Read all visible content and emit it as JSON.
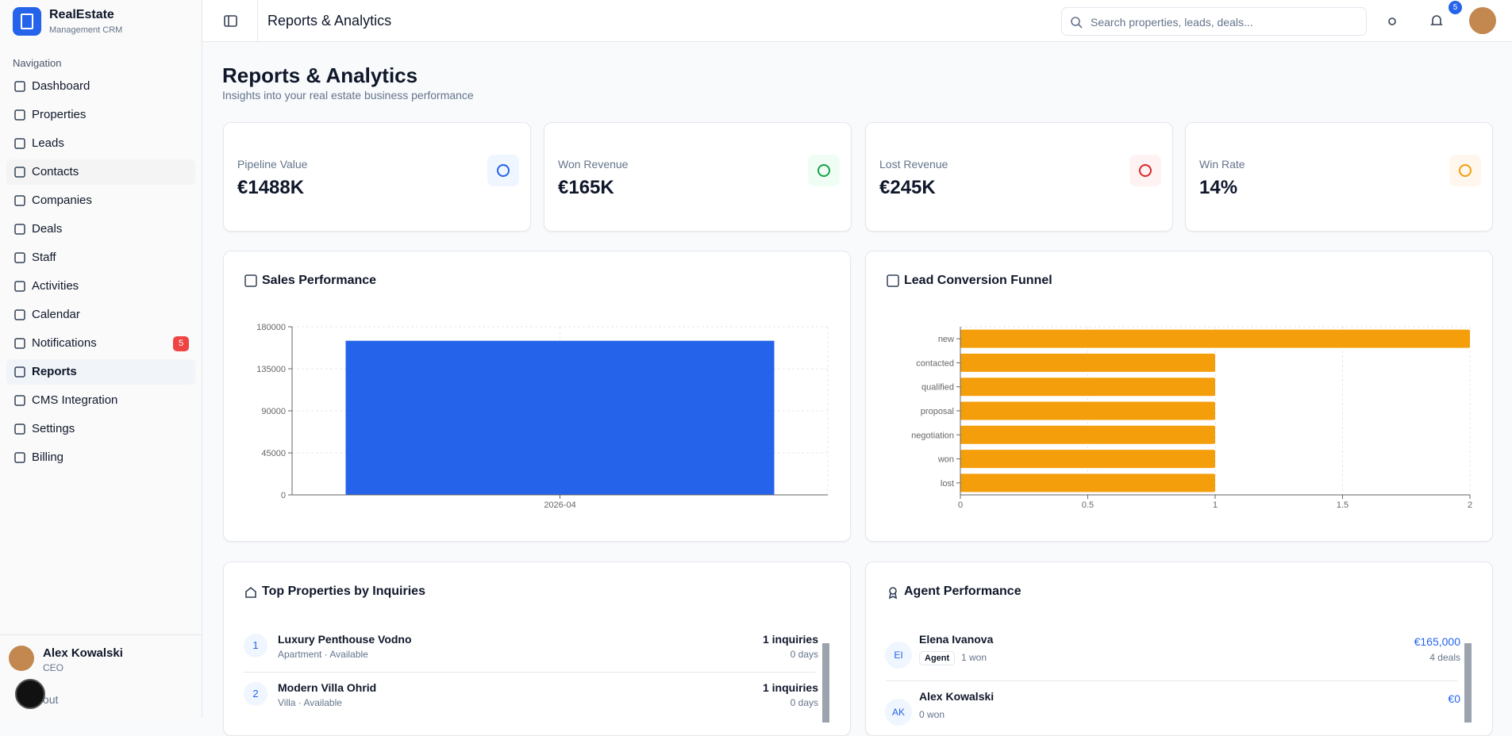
{
  "brand": {
    "name": "RealEstate",
    "tagline": "Management CRM"
  },
  "sidebar": {
    "heading": "Navigation",
    "items": [
      "Dashboard",
      "Properties",
      "Leads",
      "Contacts",
      "Companies",
      "Deals",
      "Staff",
      "Activities",
      "Calendar",
      "Notifications",
      "Reports",
      "CMS Integration",
      "Settings",
      "Billing"
    ],
    "notifications_badge": "5",
    "user": {
      "name": "Alex Kowalski",
      "role": "CEO",
      "action": "Sign out"
    }
  },
  "header": {
    "title": "Reports & Analytics",
    "search_placeholder": "Search properties, leads, deals...",
    "notification_count": "5"
  },
  "page": {
    "title": "Reports & Analytics",
    "subtitle": "Insights into your real estate business performance"
  },
  "kpis": [
    {
      "label": "Pipeline Value",
      "value": "€1488K"
    },
    {
      "label": "Won Revenue",
      "value": "€165K"
    },
    {
      "label": "Lost Revenue",
      "value": "€245K"
    },
    {
      "label": "Win Rate",
      "value": "14%"
    }
  ],
  "chart_data": [
    {
      "type": "bar",
      "title": "Sales Performance",
      "categories": [
        "2026-04"
      ],
      "values": [
        165000
      ],
      "color": "#2563eb",
      "ylim": [
        0,
        180000
      ],
      "yticks": [
        0,
        45000,
        90000,
        135000,
        180000
      ],
      "grid": true
    },
    {
      "type": "hbar",
      "title": "Lead Conversion Funnel",
      "categories": [
        "new",
        "contacted",
        "qualified",
        "proposal",
        "negotiation",
        "won",
        "lost"
      ],
      "values": [
        2,
        1,
        1,
        1,
        1,
        1,
        1
      ],
      "color": "#f59e0b",
      "xlim": [
        0,
        2
      ],
      "xticks": [
        0,
        0.5,
        1,
        1.5,
        2
      ],
      "grid": true
    }
  ],
  "top_properties": {
    "title": "Top Properties by Inquiries",
    "rows": [
      {
        "rank": "1",
        "name": "Luxury Penthouse Vodno",
        "meta": "Apartment · Available",
        "inquiries": "1 inquiries",
        "age": "0 days"
      },
      {
        "rank": "2",
        "name": "Modern Villa Ohrid",
        "meta": "Villa · Available",
        "inquiries": "1 inquiries",
        "age": "0 days"
      }
    ]
  },
  "agent_performance": {
    "title": "Agent Performance",
    "rows": [
      {
        "initials": "EI",
        "name": "Elena Ivanova",
        "role": "Agent",
        "won": "1 won",
        "revenue": "€165,000",
        "deals": "4 deals"
      },
      {
        "initials": "AK",
        "name": "Alex Kowalski",
        "won": "0 won",
        "revenue": "€0"
      }
    ]
  }
}
